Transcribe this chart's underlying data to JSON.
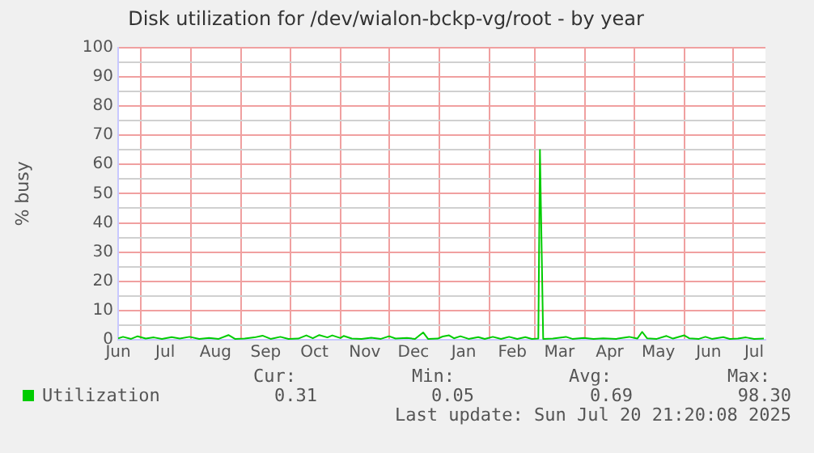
{
  "chart_data": {
    "type": "line",
    "title": "Disk utilization for /dev/wialon-bckp-vg/root - by year",
    "ylabel": "% busy",
    "xlim": [
      "2024-06-17",
      "2025-07-21"
    ],
    "xticks": [
      {
        "value": "2024-07-01",
        "label": null
      },
      {
        "value": "2024-08-01",
        "label": null
      },
      {
        "value": "2024-09-01",
        "label": null
      },
      {
        "value": "2024-10-01",
        "label": null
      },
      {
        "value": "2024-11-01",
        "label": null
      },
      {
        "value": "2024-12-01",
        "label": null
      },
      {
        "value": "2025-01-01",
        "label": null
      },
      {
        "value": "2025-02-01",
        "label": null
      },
      {
        "value": "2025-03-01",
        "label": null
      },
      {
        "value": "2025-04-01",
        "label": null
      },
      {
        "value": "2025-05-01",
        "label": null
      },
      {
        "value": "2025-06-01",
        "label": null
      },
      {
        "value": "2025-07-01",
        "label": null
      },
      {
        "value": "2024-06-17",
        "label": "Jun"
      },
      {
        "value": "2024-07-16",
        "label": "Jul"
      },
      {
        "value": "2024-08-16",
        "label": "Aug"
      },
      {
        "value": "2024-09-16",
        "label": "Sep"
      },
      {
        "value": "2024-10-16",
        "label": "Oct"
      },
      {
        "value": "2024-11-16",
        "label": "Nov"
      },
      {
        "value": "2024-12-16",
        "label": "Dec"
      },
      {
        "value": "2025-01-16",
        "label": "Jan"
      },
      {
        "value": "2025-02-15",
        "label": "Feb"
      },
      {
        "value": "2025-03-16",
        "label": "Mar"
      },
      {
        "value": "2025-04-16",
        "label": "Apr"
      },
      {
        "value": "2025-05-16",
        "label": "May"
      },
      {
        "value": "2025-06-16",
        "label": "Jun"
      },
      {
        "value": "2025-07-14",
        "label": "Jul"
      }
    ],
    "ylim": [
      0,
      100
    ],
    "yticks": [
      0,
      {
        "value": 5,
        "label": null
      },
      10,
      {
        "value": 15,
        "label": null
      },
      20,
      {
        "value": 25,
        "label": null
      },
      30,
      {
        "value": 35,
        "label": null
      },
      40,
      {
        "value": 45,
        "label": null
      },
      50,
      {
        "value": 55,
        "label": null
      },
      60,
      {
        "value": 65,
        "label": null
      },
      70,
      {
        "value": 75,
        "label": null
      },
      80,
      {
        "value": 85,
        "label": null
      },
      90,
      {
        "value": 95,
        "label": null
      },
      100
    ],
    "grid": true,
    "legend": "bottom left",
    "marker": "none",
    "line_style": "solid",
    "x": [
      "2024-06-17",
      "2024-06-20",
      "2024-06-25",
      "2024-06-29",
      "2024-07-04",
      "2024-07-09",
      "2024-07-14",
      "2024-07-20",
      "2024-07-25",
      "2024-07-31",
      "2024-08-06",
      "2024-08-12",
      "2024-08-18",
      "2024-08-24",
      "2024-08-28",
      "2024-09-03",
      "2024-09-09",
      "2024-09-14",
      "2024-09-19",
      "2024-09-25",
      "2024-09-30",
      "2024-10-06",
      "2024-10-11",
      "2024-10-15",
      "2024-10-19",
      "2024-10-24",
      "2024-10-27",
      "2024-11-01",
      "2024-11-03",
      "2024-11-08",
      "2024-11-14",
      "2024-11-20",
      "2024-11-26",
      "2024-12-01",
      "2024-12-05",
      "2024-12-12",
      "2024-12-17",
      "2024-12-22",
      "2024-12-25",
      "2024-12-31",
      "2025-01-03",
      "2025-01-07",
      "2025-01-10",
      "2025-01-14",
      "2025-01-19",
      "2025-01-25",
      "2025-01-29",
      "2025-02-03",
      "2025-02-08",
      "2025-02-13",
      "2025-02-18",
      "2025-02-23",
      "2025-02-27",
      "2025-03-03",
      "2025-03-04",
      "2025-03-06",
      "2025-03-12",
      "2025-03-20",
      "2025-03-24",
      "2025-03-31",
      "2025-04-06",
      "2025-04-12",
      "2025-04-20",
      "2025-04-28",
      "2025-05-03",
      "2025-05-06",
      "2025-05-09",
      "2025-05-15",
      "2025-05-21",
      "2025-05-25",
      "2025-06-01",
      "2025-06-04",
      "2025-06-10",
      "2025-06-14",
      "2025-06-18",
      "2025-06-25",
      "2025-06-29",
      "2025-07-04",
      "2025-07-09",
      "2025-07-14",
      "2025-07-20"
    ],
    "series": [
      {
        "name": "Utilization",
        "color": "#00cc00",
        "values": [
          0.5,
          1.0,
          0.3,
          1.2,
          0.4,
          0.8,
          0.3,
          0.9,
          0.4,
          1.0,
          0.3,
          0.6,
          0.3,
          1.6,
          0.3,
          0.4,
          0.8,
          1.4,
          0.3,
          1.0,
          0.3,
          0.4,
          1.5,
          0.5,
          1.6,
          0.8,
          1.5,
          0.6,
          1.3,
          0.4,
          0.3,
          0.7,
          0.3,
          1.2,
          0.4,
          0.6,
          0.3,
          2.5,
          0.3,
          0.4,
          1.1,
          1.5,
          0.5,
          1.2,
          0.3,
          0.9,
          0.3,
          1.0,
          0.3,
          1.0,
          0.3,
          0.9,
          0.3,
          0.4,
          65,
          0.3,
          0.4,
          1.0,
          0.3,
          0.6,
          0.3,
          0.5,
          0.3,
          1.0,
          0.4,
          2.7,
          0.5,
          0.3,
          1.3,
          0.4,
          1.5,
          0.5,
          0.3,
          1.0,
          0.3,
          0.9,
          0.3,
          0.4,
          0.8,
          0.3,
          0.4
        ]
      }
    ],
    "annotations": [
      "Cur:",
      "Min:",
      "Avg:",
      "Max:",
      "0.31",
      "0.05",
      "0.69",
      "98.30",
      "Last update: Sun Jul 20 21:20:08 2025"
    ]
  }
}
